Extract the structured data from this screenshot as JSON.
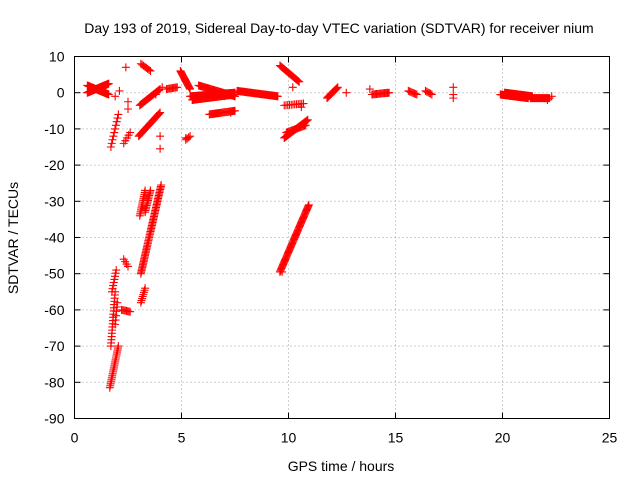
{
  "chart_data": {
    "type": "scatter",
    "title": "Day 193 of 2019, Sidereal Day-to-day VTEC variation (SDTVAR) for receiver nium",
    "xlabel": "GPS time / hours",
    "ylabel": "SDTVAR / TECUs",
    "xlim": [
      0,
      25
    ],
    "ylim": [
      -90,
      10
    ],
    "xticks": [
      0,
      5,
      10,
      15,
      20,
      25
    ],
    "yticks": [
      10,
      0,
      -10,
      -20,
      -30,
      -40,
      -50,
      -60,
      -70,
      -80,
      -90
    ],
    "xtick_labels": [
      "0",
      "5",
      "10",
      "15",
      "20",
      "25"
    ],
    "ytick_labels": [
      "10",
      "0",
      "-10",
      "-20",
      "-30",
      "-40",
      "-50",
      "-60",
      "-70",
      "-80",
      "-90"
    ],
    "grid": true,
    "marker": "+",
    "color": "#ff0000",
    "series": [
      {
        "name": "SDTVAR",
        "segments": [
          {
            "x0": 0.6,
            "y0": 0.0,
            "x1": 1.6,
            "y1": 2.5,
            "n": 50
          },
          {
            "x0": 0.6,
            "y0": 2.0,
            "x1": 1.6,
            "y1": -0.5,
            "n": 40
          },
          {
            "x0": 1.7,
            "y0": -15.0,
            "x1": 2.05,
            "y1": -6.0,
            "n": 10
          },
          {
            "x0": 1.65,
            "y0": -81.5,
            "x1": 2.05,
            "y1": -70.0,
            "n": 22
          },
          {
            "x0": 1.7,
            "y0": -70.0,
            "x1": 1.9,
            "y1": -55.0,
            "n": 18
          },
          {
            "x0": 1.75,
            "y0": -55.0,
            "x1": 1.95,
            "y1": -49.0,
            "n": 8
          },
          {
            "x0": 1.9,
            "y0": -64.0,
            "x1": 2.0,
            "y1": -58.0,
            "n": 6
          },
          {
            "x0": 2.3,
            "y0": -14.0,
            "x1": 2.6,
            "y1": -11.0,
            "n": 5
          },
          {
            "x0": 2.2,
            "y0": -60.0,
            "x1": 2.6,
            "y1": -60.5,
            "n": 8
          },
          {
            "x0": 2.3,
            "y0": -46.0,
            "x1": 2.5,
            "y1": -48.0,
            "n": 4
          },
          {
            "x0": 3.1,
            "y0": -58.0,
            "x1": 3.3,
            "y1": -54.0,
            "n": 8
          },
          {
            "x0": 3.1,
            "y0": -50.0,
            "x1": 4.05,
            "y1": -25.5,
            "n": 60
          },
          {
            "x0": 3.05,
            "y0": -34.0,
            "x1": 3.3,
            "y1": -27.0,
            "n": 14
          },
          {
            "x0": 3.3,
            "y0": -33.0,
            "x1": 3.55,
            "y1": -27.0,
            "n": 14
          },
          {
            "x0": 3.0,
            "y0": -12.0,
            "x1": 4.0,
            "y1": -5.5,
            "n": 26
          },
          {
            "x0": 3.05,
            "y0": -3.5,
            "x1": 4.0,
            "y1": 1.0,
            "n": 24
          },
          {
            "x0": 3.1,
            "y0": 8.0,
            "x1": 3.55,
            "y1": 6.0,
            "n": 8
          },
          {
            "x0": 4.3,
            "y0": 1.0,
            "x1": 4.8,
            "y1": 1.5,
            "n": 10
          },
          {
            "x0": 4.95,
            "y0": 6.0,
            "x1": 5.4,
            "y1": 1.0,
            "n": 20
          },
          {
            "x0": 5.4,
            "y0": -1.0,
            "x1": 7.5,
            "y1": 0.0,
            "n": 60
          },
          {
            "x0": 5.5,
            "y0": -2.0,
            "x1": 7.5,
            "y1": -0.5,
            "n": 50
          },
          {
            "x0": 5.8,
            "y0": 2.0,
            "x1": 7.5,
            "y1": -1.0,
            "n": 40
          },
          {
            "x0": 6.3,
            "y0": -6.0,
            "x1": 7.5,
            "y1": -5.0,
            "n": 26
          },
          {
            "x0": 5.2,
            "y0": -13.0,
            "x1": 5.4,
            "y1": -12.0,
            "n": 4
          },
          {
            "x0": 7.6,
            "y0": 0.5,
            "x1": 9.5,
            "y1": -1.0,
            "n": 50
          },
          {
            "x0": 9.6,
            "y0": -49.5,
            "x1": 10.95,
            "y1": -31.0,
            "n": 60
          },
          {
            "x0": 9.6,
            "y0": 7.5,
            "x1": 10.5,
            "y1": 3.0,
            "n": 22
          },
          {
            "x0": 9.8,
            "y0": -3.5,
            "x1": 10.7,
            "y1": -3.0,
            "n": 12
          },
          {
            "x0": 9.8,
            "y0": -12.5,
            "x1": 10.9,
            "y1": -7.5,
            "n": 28
          },
          {
            "x0": 9.9,
            "y0": -11.0,
            "x1": 10.8,
            "y1": -9.0,
            "n": 18
          },
          {
            "x0": 11.8,
            "y0": -1.5,
            "x1": 12.3,
            "y1": 1.5,
            "n": 14
          },
          {
            "x0": 13.9,
            "y0": -0.5,
            "x1": 14.7,
            "y1": 0.0,
            "n": 16
          },
          {
            "x0": 15.6,
            "y0": 0.5,
            "x1": 16.0,
            "y1": -0.5,
            "n": 8
          },
          {
            "x0": 16.4,
            "y0": 0.5,
            "x1": 16.7,
            "y1": -0.5,
            "n": 6
          },
          {
            "x0": 19.9,
            "y0": -0.5,
            "x1": 21.2,
            "y1": -1.5,
            "n": 50
          },
          {
            "x0": 20.1,
            "y0": 0.0,
            "x1": 21.4,
            "y1": -1.0,
            "n": 40
          },
          {
            "x0": 21.3,
            "y0": -1.5,
            "x1": 22.2,
            "y1": -1.5,
            "n": 24
          }
        ],
        "points": [
          [
            1.9,
            -1.0
          ],
          [
            2.4,
            7.0
          ],
          [
            2.5,
            -2.5
          ],
          [
            2.5,
            -4.5
          ],
          [
            2.1,
            0.5
          ],
          [
            4.0,
            -12.0
          ],
          [
            4.0,
            -15.5
          ],
          [
            4.1,
            1.5
          ],
          [
            3.8,
            -0.5
          ],
          [
            5.6,
            -1.5
          ],
          [
            5.2,
            -12.5
          ],
          [
            7.3,
            -5.5
          ],
          [
            9.7,
            -49.5
          ],
          [
            10.2,
            1.5
          ],
          [
            10.6,
            -4.0
          ],
          [
            12.7,
            0.0
          ],
          [
            13.8,
            1.0
          ],
          [
            14.6,
            0.0
          ],
          [
            17.7,
            1.5
          ],
          [
            17.7,
            -0.5
          ],
          [
            17.7,
            -1.5
          ],
          [
            22.1,
            -2.0
          ],
          [
            22.3,
            -1.0
          ]
        ]
      }
    ]
  }
}
